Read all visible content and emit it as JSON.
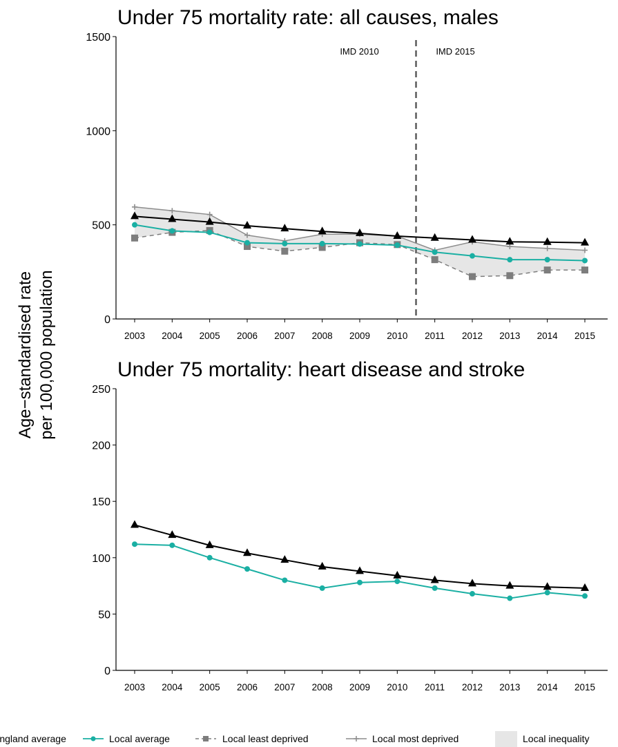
{
  "y_axis_label": [
    "Age−standardised rate",
    "per 100,000 population"
  ],
  "legend": {
    "england": "England average",
    "local": "Local average",
    "least": "Local least deprived",
    "most": "Local most deprived",
    "inequality": "Local inequality"
  },
  "colors": {
    "england": "#000000",
    "local": "#1aafa3",
    "least": "#7d7d7d",
    "most": "#8c8c8c",
    "inequality": "#e6e6e6",
    "imd_line": "#555555"
  },
  "chart_data": [
    {
      "type": "line",
      "title": "Under 75 mortality rate: all causes, males",
      "categories": [
        "2003",
        "2004",
        "2005",
        "2006",
        "2007",
        "2008",
        "2009",
        "2010",
        "2011",
        "2012",
        "2013",
        "2014",
        "2015"
      ],
      "ylim": [
        0,
        1500
      ],
      "yticks": [
        0,
        500,
        1000,
        1500
      ],
      "grid": false,
      "annotations": {
        "divider_after": "2010",
        "left_label": "IMD 2010",
        "right_label": "IMD 2015"
      },
      "shaded_band": {
        "name": "Local inequality",
        "between": [
          "Local least deprived",
          "Local most deprived"
        ]
      },
      "series": [
        {
          "key": "england",
          "name": "England average",
          "marker": "triangle",
          "values": [
            545,
            530,
            515,
            495,
            480,
            465,
            455,
            440,
            430,
            420,
            410,
            408,
            405
          ]
        },
        {
          "key": "local",
          "name": "Local average",
          "marker": "circle",
          "values": [
            500,
            468,
            460,
            405,
            400,
            400,
            398,
            392,
            355,
            335,
            315,
            315,
            310
          ]
        },
        {
          "key": "least",
          "name": "Local least deprived",
          "marker": "square",
          "dashed": true,
          "values": [
            430,
            460,
            470,
            385,
            360,
            380,
            405,
            395,
            315,
            225,
            230,
            260,
            260
          ]
        },
        {
          "key": "most",
          "name": "Local most deprived",
          "marker": "plus",
          "values": [
            595,
            575,
            555,
            445,
            415,
            450,
            450,
            440,
            365,
            410,
            385,
            375,
            365
          ]
        }
      ]
    },
    {
      "type": "line",
      "title": "Under 75 mortality: heart disease and stroke",
      "categories": [
        "2003",
        "2004",
        "2005",
        "2006",
        "2007",
        "2008",
        "2009",
        "2010",
        "2011",
        "2012",
        "2013",
        "2014",
        "2015"
      ],
      "ylim": [
        0,
        250
      ],
      "yticks": [
        0,
        50,
        100,
        150,
        200,
        250
      ],
      "grid": false,
      "series": [
        {
          "key": "england",
          "name": "England average",
          "marker": "triangle",
          "values": [
            129,
            120,
            111,
            104,
            98,
            92,
            88,
            84,
            80,
            77,
            75,
            74,
            73
          ]
        },
        {
          "key": "local",
          "name": "Local average",
          "marker": "circle",
          "values": [
            112,
            111,
            100,
            90,
            80,
            73,
            78,
            79,
            73,
            68,
            64,
            69,
            66
          ]
        }
      ]
    }
  ]
}
